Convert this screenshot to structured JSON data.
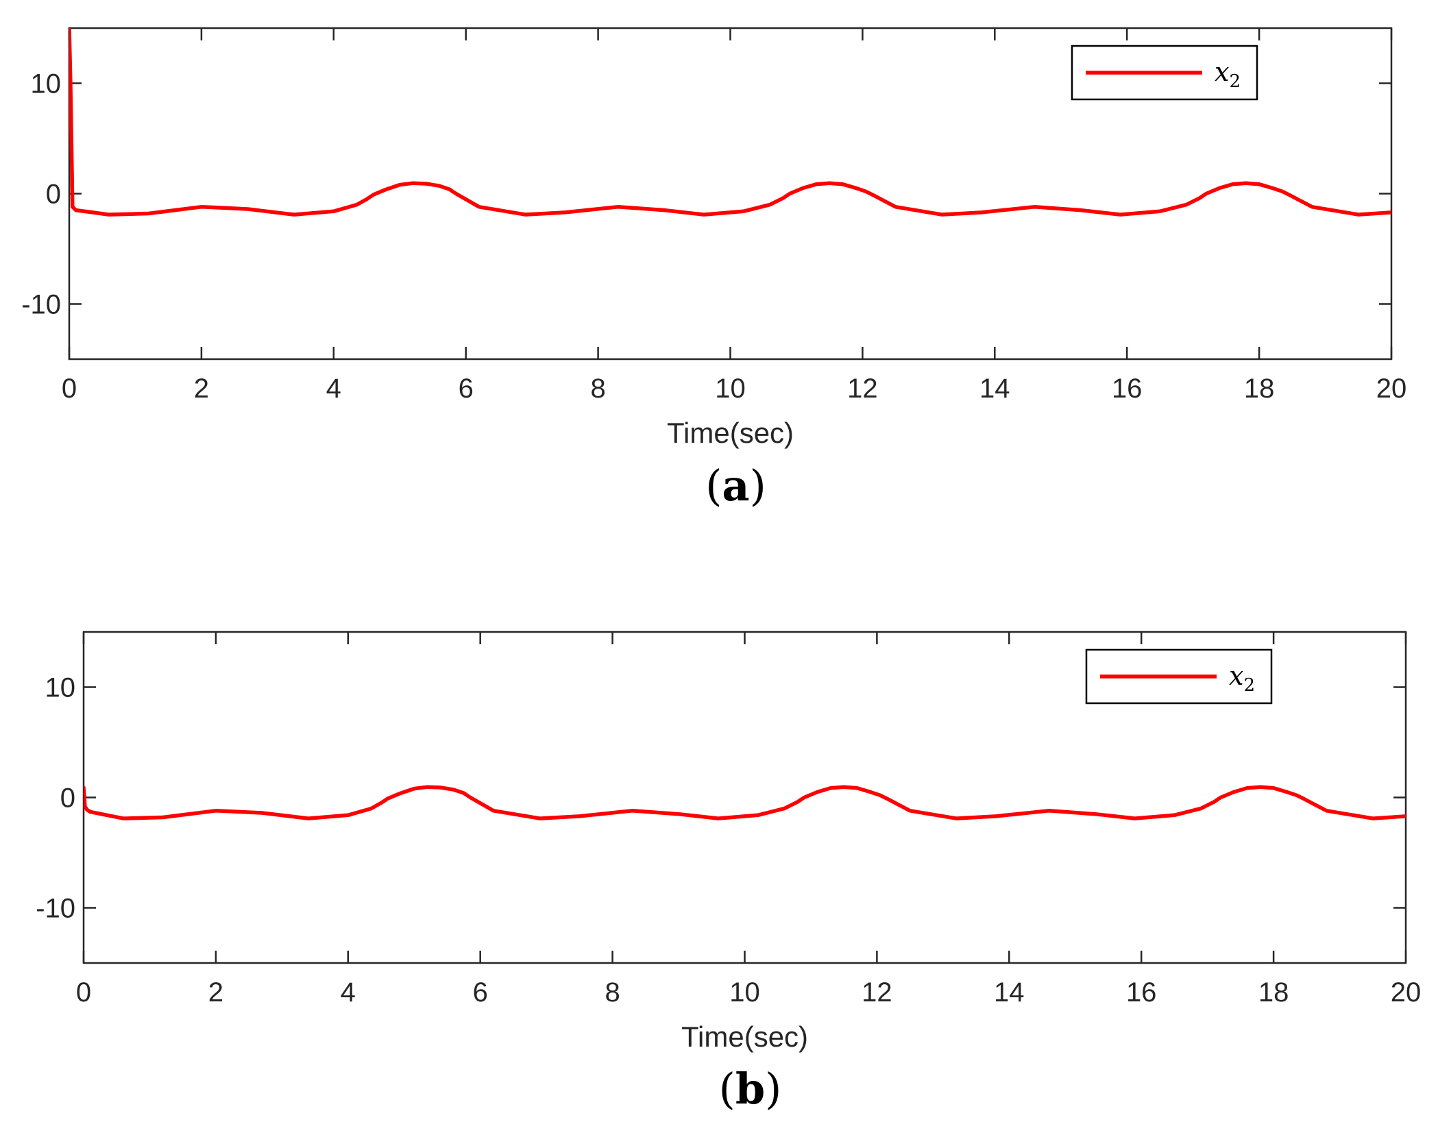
{
  "figure_colors": {
    "series": "#ff0000",
    "axes": "#262626",
    "legend_box": "#000000"
  },
  "chart_data": [
    {
      "panel_label": "a",
      "type": "line",
      "xlabel": "Time(sec)",
      "ylabel": "",
      "xlim": [
        0,
        20
      ],
      "ylim": [
        -15,
        15
      ],
      "xticks": [
        0,
        2,
        4,
        6,
        8,
        10,
        12,
        14,
        16,
        18,
        20
      ],
      "yticks": [
        -10,
        0,
        10
      ],
      "ytick_labels": [
        "-10",
        "0",
        "10"
      ],
      "grid": false,
      "legend_position": "top-right",
      "series": [
        {
          "name": "x",
          "name_subscript": "2",
          "color": "#ff0000",
          "x": [
            0,
            0.02,
            0.05,
            0.1,
            0.6,
            1.2,
            2.0,
            2.7,
            3.4,
            4.0,
            4.35,
            4.5,
            4.6,
            4.8,
            5.0,
            5.2,
            5.4,
            5.6,
            5.75,
            5.85,
            6.2,
            6.9,
            7.5,
            8.3,
            9.0,
            9.6,
            10.2,
            10.6,
            10.8,
            10.9,
            11.1,
            11.3,
            11.5,
            11.7,
            11.9,
            12.05,
            12.15,
            12.5,
            13.2,
            13.8,
            14.6,
            15.3,
            15.9,
            16.5,
            16.9,
            17.1,
            17.2,
            17.4,
            17.6,
            17.8,
            18.0,
            18.2,
            18.35,
            18.45,
            18.8,
            19.5,
            20.0
          ],
          "y": [
            15,
            10,
            -1.2,
            -1.5,
            -1.9,
            -1.8,
            -1.2,
            -1.4,
            -1.9,
            -1.6,
            -1.0,
            -0.5,
            -0.1,
            0.4,
            0.8,
            0.95,
            0.9,
            0.7,
            0.4,
            0.0,
            -1.2,
            -1.9,
            -1.7,
            -1.2,
            -1.5,
            -1.9,
            -1.6,
            -1.0,
            -0.4,
            0.0,
            0.5,
            0.85,
            0.95,
            0.85,
            0.5,
            0.2,
            -0.1,
            -1.2,
            -1.9,
            -1.7,
            -1.2,
            -1.5,
            -1.9,
            -1.6,
            -1.0,
            -0.4,
            0.0,
            0.5,
            0.85,
            0.95,
            0.85,
            0.5,
            0.2,
            -0.1,
            -1.2,
            -1.9,
            -1.7
          ]
        }
      ]
    },
    {
      "panel_label": "b",
      "type": "line",
      "xlabel": "Time(sec)",
      "ylabel": "",
      "xlim": [
        0,
        20
      ],
      "ylim": [
        -15,
        15
      ],
      "xticks": [
        0,
        2,
        4,
        6,
        8,
        10,
        12,
        14,
        16,
        18,
        20
      ],
      "yticks": [
        -10,
        0,
        10
      ],
      "ytick_labels": [
        "-10",
        "0",
        "10"
      ],
      "grid": false,
      "legend_position": "top-right",
      "series": [
        {
          "name": "x",
          "name_subscript": "2",
          "color": "#ff0000",
          "x": [
            0,
            0.02,
            0.05,
            0.1,
            0.6,
            1.2,
            2.0,
            2.7,
            3.4,
            4.0,
            4.35,
            4.5,
            4.6,
            4.8,
            5.0,
            5.2,
            5.4,
            5.6,
            5.75,
            5.85,
            6.2,
            6.9,
            7.5,
            8.3,
            9.0,
            9.6,
            10.2,
            10.6,
            10.8,
            10.9,
            11.1,
            11.3,
            11.5,
            11.7,
            11.9,
            12.05,
            12.15,
            12.5,
            13.2,
            13.8,
            14.6,
            15.3,
            15.9,
            16.5,
            16.9,
            17.1,
            17.2,
            17.4,
            17.6,
            17.8,
            18.0,
            18.2,
            18.35,
            18.45,
            18.8,
            19.5,
            20.0
          ],
          "y": [
            0.9,
            -0.8,
            -1.1,
            -1.3,
            -1.9,
            -1.8,
            -1.2,
            -1.4,
            -1.9,
            -1.6,
            -1.0,
            -0.5,
            -0.1,
            0.4,
            0.8,
            0.95,
            0.9,
            0.7,
            0.4,
            0.0,
            -1.2,
            -1.9,
            -1.7,
            -1.2,
            -1.5,
            -1.9,
            -1.6,
            -1.0,
            -0.4,
            0.0,
            0.5,
            0.85,
            0.95,
            0.85,
            0.5,
            0.2,
            -0.1,
            -1.2,
            -1.9,
            -1.7,
            -1.2,
            -1.5,
            -1.9,
            -1.6,
            -1.0,
            -0.4,
            0.0,
            0.5,
            0.85,
            0.95,
            0.85,
            0.5,
            0.2,
            -0.1,
            -1.2,
            -1.9,
            -1.7
          ]
        }
      ]
    }
  ]
}
